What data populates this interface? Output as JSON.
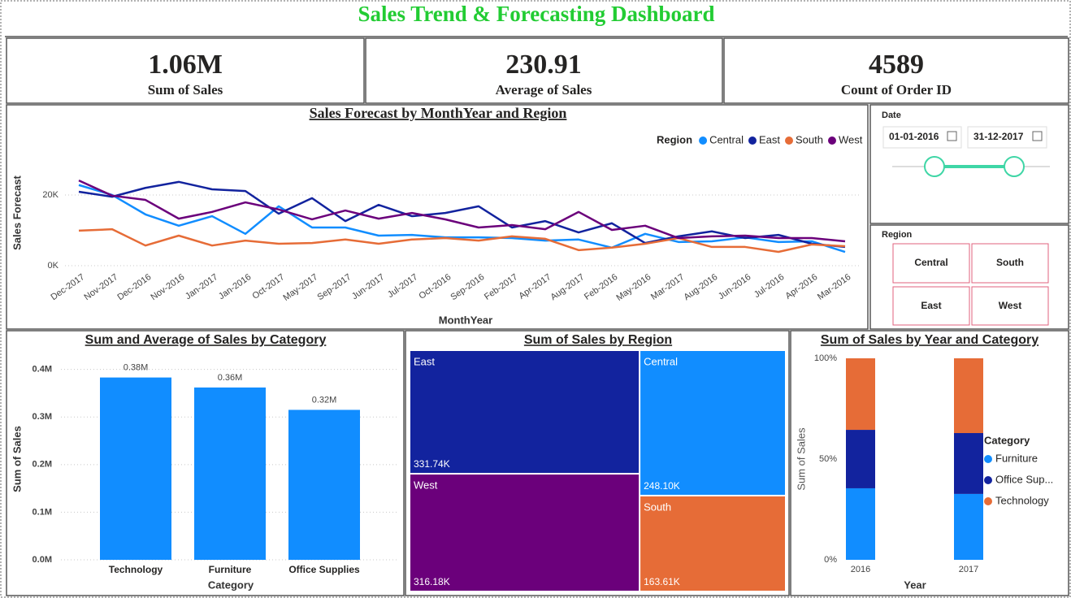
{
  "header": {
    "title": "Sales Trend & Forecasting Dashboard"
  },
  "kpis": [
    {
      "value": "1.06M",
      "label": "Sum of Sales"
    },
    {
      "value": "230.91",
      "label": "Average of Sales"
    },
    {
      "value": "4589",
      "label": "Count of Order ID"
    }
  ],
  "date_slicer": {
    "label": "Date",
    "start": "01-01-2016",
    "end": "31-12-2017"
  },
  "region_slicer": {
    "label": "Region",
    "options": [
      "Central",
      "South",
      "East",
      "West"
    ]
  },
  "chart_data": [
    {
      "type": "line",
      "title": "Sales Forecast by MonthYear and Region",
      "x_label": "MonthYear",
      "y_label": "Sales Forecast",
      "legend_title": "Region",
      "legend": "top-right",
      "grid": true,
      "categories": [
        "Dec-2017",
        "Nov-2017",
        "Dec-2016",
        "Nov-2016",
        "Jan-2017",
        "Jan-2016",
        "Oct-2017",
        "May-2017",
        "Sep-2017",
        "Jun-2017",
        "Jul-2017",
        "Oct-2016",
        "Sep-2016",
        "Feb-2017",
        "Apr-2017",
        "Aug-2017",
        "Feb-2016",
        "May-2016",
        "Mar-2017",
        "Aug-2016",
        "Jun-2016",
        "Jul-2016",
        "Apr-2016",
        "Mar-2016"
      ],
      "ylim": [
        0,
        34000
      ],
      "yticks": [
        {
          "value": 0,
          "label": "0K"
        },
        {
          "value": 20000,
          "label": "20K"
        }
      ],
      "series": [
        {
          "name": "Central",
          "color": "#118dff",
          "values": [
            22800,
            20000,
            14500,
            11300,
            14000,
            9000,
            16800,
            10800,
            10800,
            8500,
            8700,
            8000,
            8000,
            7800,
            7100,
            7400,
            5100,
            9000,
            6700,
            6900,
            8000,
            6700,
            6900,
            3900
          ]
        },
        {
          "name": "East",
          "color": "#12239e",
          "values": [
            20900,
            19500,
            22000,
            23700,
            21600,
            21100,
            14700,
            19100,
            12600,
            17200,
            14000,
            14900,
            16800,
            10800,
            12600,
            9400,
            12000,
            6400,
            8300,
            9700,
            7800,
            8700,
            6200,
            5300
          ]
        },
        {
          "name": "South",
          "color": "#e66c37",
          "values": [
            9900,
            10300,
            5700,
            8500,
            5700,
            7100,
            6200,
            6400,
            7400,
            6200,
            7400,
            7800,
            7100,
            8300,
            7600,
            4400,
            5100,
            6200,
            7800,
            5300,
            5300,
            3900,
            6000,
            5500
          ]
        },
        {
          "name": "West",
          "color": "#6b007b",
          "values": [
            24100,
            19800,
            18600,
            13300,
            15200,
            17900,
            15900,
            13100,
            15600,
            13300,
            14900,
            13100,
            10800,
            11500,
            10300,
            15200,
            10100,
            11300,
            7800,
            8300,
            8500,
            7800,
            7800,
            6900
          ]
        }
      ]
    },
    {
      "type": "bar",
      "title": "Sum and Average of Sales by Category",
      "x_label": "Category",
      "y_label": "Sum of Sales",
      "grid": true,
      "color": "#118dff",
      "categories": [
        "Technology",
        "Furniture",
        "Office Supplies"
      ],
      "values": [
        383000,
        362000,
        315000
      ],
      "value_labels": [
        "0.38M",
        "0.36M",
        "0.32M"
      ],
      "ylim": [
        0,
        425000
      ],
      "yticks": [
        {
          "value": 0,
          "label": "0.0M"
        },
        {
          "value": 100000,
          "label": "0.1M"
        },
        {
          "value": 200000,
          "label": "0.2M"
        },
        {
          "value": 300000,
          "label": "0.3M"
        },
        {
          "value": 400000,
          "label": "0.4M"
        }
      ]
    },
    {
      "type": "treemap",
      "title": "Sum of Sales by Region",
      "categories": [
        "East",
        "West",
        "Central",
        "South"
      ],
      "values": [
        331740,
        316180,
        248100,
        163610
      ],
      "value_labels": [
        "331.74K",
        "316.18K",
        "248.10K",
        "163.61K"
      ],
      "colors": [
        "#12239e",
        "#6b007b",
        "#118dff",
        "#e66c37"
      ]
    },
    {
      "type": "stacked_bar",
      "title": "Sum of Sales by Year and Category",
      "x_label": "Year",
      "y_label": "Sum of Sales",
      "legend_title": "Category",
      "legend": "right",
      "categories": [
        "2016",
        "2017"
      ],
      "ylim": [
        0,
        100
      ],
      "yticks": [
        {
          "value": 0,
          "label": "0%"
        },
        {
          "value": 50,
          "label": "50%"
        },
        {
          "value": 100,
          "label": "100%"
        }
      ],
      "series": [
        {
          "name": "Furniture",
          "color": "#118dff",
          "values": [
            35.5,
            32.7
          ]
        },
        {
          "name": "Office Sup...",
          "color": "#12239e",
          "values": [
            29.0,
            30.2
          ]
        },
        {
          "name": "Technology",
          "color": "#e66c37",
          "values": [
            35.5,
            37.1
          ]
        }
      ]
    }
  ]
}
